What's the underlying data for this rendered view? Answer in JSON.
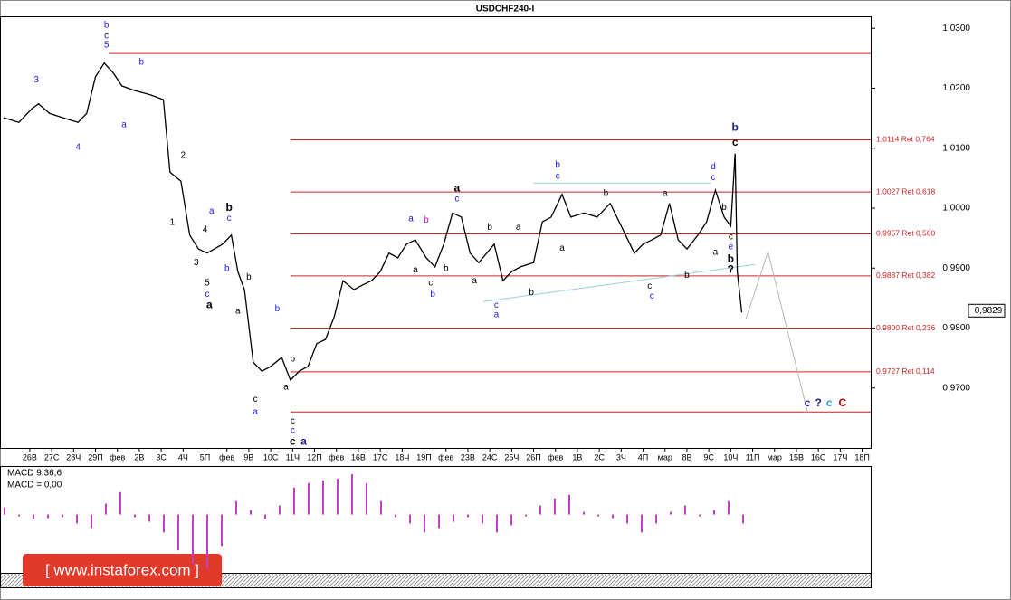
{
  "chart_data": {
    "type": "line",
    "title": "USDCHF240-I",
    "color": "#000000",
    "xlim": [
      -1.36,
      38.39
    ],
    "ylim": [
      0.96,
      1.032
    ],
    "xticks": [
      {
        "value": 0,
        "label": "26В"
      },
      {
        "value": 1,
        "label": "27С"
      },
      {
        "value": 2,
        "label": "28Ч"
      },
      {
        "value": 3,
        "label": "29П"
      },
      {
        "value": 4,
        "label": "фев"
      },
      {
        "value": 5,
        "label": "2В"
      },
      {
        "value": 6,
        "label": "3С"
      },
      {
        "value": 7,
        "label": "4Ч"
      },
      {
        "value": 8,
        "label": "5П"
      },
      {
        "value": 9,
        "label": "фев"
      },
      {
        "value": 10,
        "label": "9В"
      },
      {
        "value": 11,
        "label": "10С"
      },
      {
        "value": 12,
        "label": "11Ч"
      },
      {
        "value": 13,
        "label": "12П"
      },
      {
        "value": 14,
        "label": "фев"
      },
      {
        "value": 15,
        "label": "16В"
      },
      {
        "value": 16,
        "label": "17С"
      },
      {
        "value": 17,
        "label": "18Ч"
      },
      {
        "value": 18,
        "label": "19П"
      },
      {
        "value": 19,
        "label": "фев"
      },
      {
        "value": 20,
        "label": "23В"
      },
      {
        "value": 21,
        "label": "24С"
      },
      {
        "value": 22,
        "label": "25Ч"
      },
      {
        "value": 23,
        "label": "26П"
      },
      {
        "value": 24,
        "label": "фев"
      },
      {
        "value": 25,
        "label": "1В"
      },
      {
        "value": 26,
        "label": "2С"
      },
      {
        "value": 27,
        "label": "3Ч"
      },
      {
        "value": 28,
        "label": "4П"
      },
      {
        "value": 29,
        "label": "мар"
      },
      {
        "value": 30,
        "label": "8В"
      },
      {
        "value": 31,
        "label": "9С"
      },
      {
        "value": 32,
        "label": "10Ч"
      },
      {
        "value": 33,
        "label": "11П"
      },
      {
        "value": 34,
        "label": "мар"
      },
      {
        "value": 35,
        "label": "15В"
      },
      {
        "value": 36,
        "label": "16С"
      },
      {
        "value": 37,
        "label": "17Ч"
      },
      {
        "value": 38,
        "label": "18П"
      }
    ],
    "yticks": [
      {
        "value": 1.03,
        "label": "1,0300"
      },
      {
        "value": 1.02,
        "label": "1,0200"
      },
      {
        "value": 1.01,
        "label": "1,0100"
      },
      {
        "value": 1.0,
        "label": "1,0000"
      },
      {
        "value": 0.99,
        "label": "0,9900"
      },
      {
        "value": 0.98,
        "label": "0,9800"
      },
      {
        "value": 0.97,
        "label": "0,9700"
      }
    ],
    "x": [
      -1.2,
      -0.5,
      0.1,
      0.4,
      0.9,
      1.5,
      2.2,
      2.6,
      3.0,
      3.4,
      3.8,
      4.2,
      4.8,
      5.5,
      6.1,
      6.4,
      6.9,
      7.3,
      7.7,
      8.1,
      8.8,
      9.2,
      9.5,
      9.8,
      10.2,
      10.6,
      11.0,
      11.5,
      11.9,
      12.3,
      12.7,
      13.1,
      13.5,
      13.9,
      14.3,
      14.8,
      15.2,
      15.6,
      16.0,
      16.4,
      16.8,
      17.2,
      17.6,
      18.1,
      18.5,
      18.9,
      19.3,
      19.7,
      20.1,
      20.5,
      21.2,
      21.6,
      22.0,
      22.4,
      23.0,
      23.4,
      23.8,
      24.3,
      24.7,
      25.3,
      25.9,
      26.5,
      27.2,
      27.6,
      28.0,
      28.4,
      28.8,
      29.2,
      29.6,
      30.0,
      30.5,
      30.9,
      31.3,
      31.7,
      32.0,
      32.2,
      32.3,
      32.5
    ],
    "values": [
      1.0151,
      1.0143,
      1.0166,
      1.0174,
      1.0158,
      1.0151,
      1.0143,
      1.0158,
      1.0219,
      1.0242,
      1.0226,
      1.0204,
      1.0196,
      1.0189,
      1.0181,
      1.006,
      1.0045,
      0.9955,
      0.9932,
      0.9925,
      0.994,
      0.9955,
      0.9894,
      0.9864,
      0.9743,
      0.9728,
      0.9736,
      0.9751,
      0.9713,
      0.9728,
      0.9736,
      0.9774,
      0.9781,
      0.9819,
      0.9879,
      0.9864,
      0.9872,
      0.9879,
      0.9894,
      0.9925,
      0.9917,
      0.994,
      0.9947,
      0.9917,
      0.9902,
      0.994,
      0.9992,
      0.9985,
      0.9925,
      0.9909,
      0.994,
      0.9879,
      0.9894,
      0.9902,
      0.9909,
      0.9977,
      0.9985,
      1.0023,
      0.9985,
      0.9992,
      0.9985,
      1.0008,
      0.9955,
      0.9925,
      0.994,
      0.9947,
      0.9955,
      1.0008,
      0.9947,
      0.9932,
      0.9955,
      0.9977,
      1.003,
      0.9985,
      0.997,
      1.0091,
      0.9894,
      0.9826
    ],
    "last_price": {
      "value": 0.9829,
      "label": "0,9829"
    },
    "levels": [
      {
        "value": 1.0258,
        "x0": 3.6
      },
      {
        "value": 1.0114,
        "x0": 11.9,
        "label": "1,0114 Ret 0,764"
      },
      {
        "value": 1.0027,
        "x0": 11.9,
        "label": "1,0027 Ret 0,618"
      },
      {
        "value": 0.9957,
        "x0": 11.9,
        "label": "0,9957 Ret 0,500"
      },
      {
        "value": 0.9887,
        "x0": 11.9,
        "label": "0,9887 Ret 0,382"
      },
      {
        "value": 0.98,
        "x0": 11.9,
        "label": "0,9800 Ret 0,236"
      },
      {
        "value": 0.9727,
        "x0": 11.9,
        "label": "0,9727 Ret 0,114"
      },
      {
        "value": 0.966,
        "x0": 11.9
      }
    ],
    "level_color": "#d02020",
    "trendlines": [
      {
        "x": [
          23.0,
          31.1
        ],
        "values": [
          1.0042,
          1.0042
        ]
      },
      {
        "x": [
          20.7,
          33.1
        ],
        "values": [
          0.9844,
          0.9906
        ]
      }
    ],
    "trend_color": "#9ccfd8",
    "projection": {
      "x": [
        32.7,
        33.7,
        35.5
      ],
      "values": [
        0.9816,
        0.9927,
        0.966
      ],
      "color": "#b8b8b8"
    },
    "annotations": [
      {
        "text": "b",
        "x": 3.5,
        "y": 1.0305,
        "color": "#1a1aff"
      },
      {
        "text": "c",
        "x": 3.5,
        "y": 1.0287,
        "color": "#1a1a8c"
      },
      {
        "text": "5",
        "x": 3.5,
        "y": 1.0272,
        "color": "#1a1aff"
      },
      {
        "text": "3",
        "x": 0.3,
        "y": 1.0214,
        "color": "#1a1aff"
      },
      {
        "text": "4",
        "x": 2.2,
        "y": 1.0101,
        "color": "#1a1aff"
      },
      {
        "text": "b",
        "x": 5.1,
        "y": 1.0243,
        "color": "#1a1aff"
      },
      {
        "text": "a",
        "x": 4.3,
        "y": 1.0139,
        "color": "#1a1aff"
      },
      {
        "text": "2",
        "x": 7.0,
        "y": 1.0088,
        "color": "#000000"
      },
      {
        "text": "1",
        "x": 6.5,
        "y": 0.9976,
        "color": "#000000"
      },
      {
        "text": "3",
        "x": 7.6,
        "y": 0.9909,
        "color": "#000000"
      },
      {
        "text": "4",
        "x": 8.0,
        "y": 0.9964,
        "color": "#000000"
      },
      {
        "text": "a",
        "x": 8.3,
        "y": 0.9995,
        "color": "#1a1aff"
      },
      {
        "text": "b",
        "x": 9.1,
        "y": 1.0,
        "color": "#000000",
        "bold": true
      },
      {
        "text": "c",
        "x": 9.1,
        "y": 0.9983,
        "color": "#1a1aff"
      },
      {
        "text": "5",
        "x": 8.1,
        "y": 0.9875,
        "color": "#000000"
      },
      {
        "text": "c",
        "x": 8.1,
        "y": 0.9856,
        "color": "#1a1aff"
      },
      {
        "text": "a",
        "x": 8.2,
        "y": 0.9838,
        "color": "#000000",
        "bold": true
      },
      {
        "text": "b",
        "x": 9.0,
        "y": 0.9899,
        "color": "#1a1aff"
      },
      {
        "text": "a",
        "x": 9.5,
        "y": 0.9828,
        "color": "#000000"
      },
      {
        "text": "b",
        "x": 10.0,
        "y": 0.9885,
        "color": "#000000"
      },
      {
        "text": "b",
        "x": 11.3,
        "y": 0.9832,
        "color": "#1a1aff"
      },
      {
        "text": "c",
        "x": 10.3,
        "y": 0.9681,
        "color": "#000000"
      },
      {
        "text": "a",
        "x": 10.3,
        "y": 0.966,
        "color": "#1a1aff"
      },
      {
        "text": "a",
        "x": 11.7,
        "y": 0.9701,
        "color": "#000000"
      },
      {
        "text": "b",
        "x": 12.0,
        "y": 0.9748,
        "color": "#000000"
      },
      {
        "text": "c",
        "x": 12.0,
        "y": 0.9645,
        "color": "#000000"
      },
      {
        "text": "c",
        "x": 12.0,
        "y": 0.9629,
        "color": "#1a1aff"
      },
      {
        "text": "c",
        "x": 12.0,
        "y": 0.961,
        "color": "#000000",
        "bold": true
      },
      {
        "text": "a",
        "x": 12.5,
        "y": 0.961,
        "color": "#1a1a8c",
        "bold": true
      },
      {
        "text": "a",
        "x": 17.4,
        "y": 0.9982,
        "color": "#1a1aff"
      },
      {
        "text": "b",
        "x": 18.1,
        "y": 0.998,
        "color": "#c000c0"
      },
      {
        "text": "a",
        "x": 17.6,
        "y": 0.9897,
        "color": "#000000"
      },
      {
        "text": "c",
        "x": 18.3,
        "y": 0.9875,
        "color": "#000000"
      },
      {
        "text": "b",
        "x": 18.4,
        "y": 0.9856,
        "color": "#1a1aff"
      },
      {
        "text": "a",
        "x": 19.5,
        "y": 1.0033,
        "color": "#000000",
        "bold": true
      },
      {
        "text": "c",
        "x": 19.5,
        "y": 1.0015,
        "color": "#1a1aff"
      },
      {
        "text": "b",
        "x": 19.0,
        "y": 0.9899,
        "color": "#000000"
      },
      {
        "text": "b",
        "x": 21.0,
        "y": 0.9968,
        "color": "#000000"
      },
      {
        "text": "a",
        "x": 22.3,
        "y": 0.9968,
        "color": "#000000"
      },
      {
        "text": "a",
        "x": 20.3,
        "y": 0.9879,
        "color": "#000000"
      },
      {
        "text": "c",
        "x": 21.3,
        "y": 0.9838,
        "color": "#1a1aff"
      },
      {
        "text": "a",
        "x": 21.3,
        "y": 0.9822,
        "color": "#1a1aff"
      },
      {
        "text": "b",
        "x": 22.9,
        "y": 0.9859,
        "color": "#000000"
      },
      {
        "text": "b",
        "x": 24.1,
        "y": 1.0072,
        "color": "#1a1aff"
      },
      {
        "text": "c",
        "x": 24.1,
        "y": 1.0053,
        "color": "#1a1aff"
      },
      {
        "text": "a",
        "x": 24.3,
        "y": 0.9933,
        "color": "#000000"
      },
      {
        "text": "b",
        "x": 26.3,
        "y": 1.0024,
        "color": "#000000"
      },
      {
        "text": "a",
        "x": 29.0,
        "y": 1.0024,
        "color": "#000000"
      },
      {
        "text": "c",
        "x": 28.3,
        "y": 0.987,
        "color": "#000000"
      },
      {
        "text": "c",
        "x": 28.4,
        "y": 0.9853,
        "color": "#1a1aff"
      },
      {
        "text": "b",
        "x": 30.0,
        "y": 0.9888,
        "color": "#000000"
      },
      {
        "text": "d",
        "x": 31.2,
        "y": 1.0069,
        "color": "#1a1aff"
      },
      {
        "text": "c",
        "x": 31.2,
        "y": 1.0051,
        "color": "#1a1aff"
      },
      {
        "text": "b",
        "x": 31.7,
        "y": 1.0001,
        "color": "#000000"
      },
      {
        "text": "a",
        "x": 31.3,
        "y": 0.9926,
        "color": "#000000"
      },
      {
        "text": "c",
        "x": 32.0,
        "y": 0.9952,
        "color": "#000000"
      },
      {
        "text": "e",
        "x": 32.0,
        "y": 0.9935,
        "color": "#1a1aff"
      },
      {
        "text": "b",
        "x": 32.0,
        "y": 0.9914,
        "color": "#000000",
        "bold": true
      },
      {
        "text": "?",
        "x": 32.0,
        "y": 0.9897,
        "color": "#000000",
        "bold": true
      },
      {
        "text": "b",
        "x": 32.2,
        "y": 1.0134,
        "color": "#1a1a8c",
        "bold": true
      },
      {
        "text": "c",
        "x": 32.2,
        "y": 1.0109,
        "color": "#000000",
        "bold": true
      },
      {
        "text": "c",
        "x": 35.5,
        "y": 0.9674,
        "color": "#1a1a8c",
        "bold": true
      },
      {
        "text": "?",
        "x": 36.0,
        "y": 0.9674,
        "color": "#1a1a8c",
        "bold": true
      },
      {
        "text": "c",
        "x": 36.5,
        "y": 0.9674,
        "color": "#20a0c0",
        "bold": true
      },
      {
        "text": "C",
        "x": 37.1,
        "y": 0.9674,
        "color": "#c00000",
        "bold": true
      }
    ],
    "macd": {
      "type": "bar",
      "title": "MACD 9,36,6",
      "subtitle": "MACD = 0,00",
      "color": "#c040c0",
      "ylim": [
        -0.0065,
        0.0053
      ],
      "values": [
        0.0008,
        -0.0002,
        -0.0005,
        -0.0004,
        -0.0003,
        -0.001,
        -0.0015,
        0.0012,
        0.0025,
        -0.0003,
        -0.0008,
        -0.002,
        -0.004,
        -0.0055,
        -0.006,
        -0.0035,
        0.0015,
        0.0005,
        -0.0005,
        0.001,
        0.003,
        0.0035,
        0.0038,
        0.004,
        0.0045,
        0.0035,
        0.0015,
        -0.0003,
        -0.001,
        -0.002,
        -0.0015,
        -0.0008,
        -0.0003,
        -0.001,
        -0.002,
        -0.0012,
        -0.0002,
        0.001,
        0.0018,
        0.0022,
        0.0003,
        -0.0002,
        -0.0004,
        -0.001,
        -0.002,
        -0.001,
        0.0003,
        0.001,
        -0.0002,
        0.0005,
        0.0015,
        -0.001
      ]
    },
    "watermark": "[ www.instaforex.com ]"
  }
}
